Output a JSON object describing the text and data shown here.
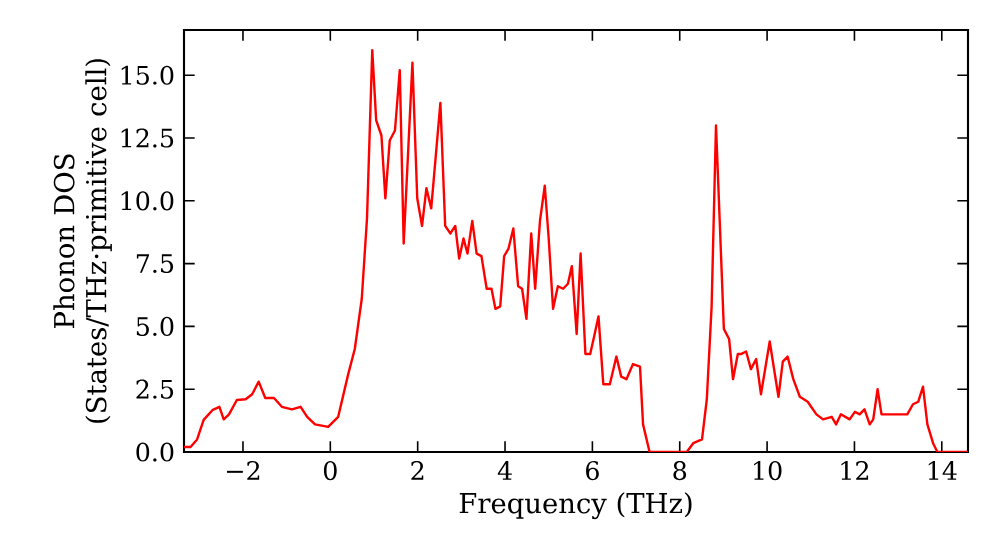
{
  "chart_data": {
    "type": "line",
    "xlabel": "Frequency (THz)",
    "ylabel": "Phonon DOS (States/THz·primitive cell)",
    "x": [
      -3.35,
      -3.2,
      -3.05,
      -2.9,
      -2.69,
      -2.54,
      -2.44,
      -2.32,
      -2.14,
      -1.94,
      -1.79,
      -1.64,
      -1.49,
      -1.29,
      -1.11,
      -0.88,
      -0.68,
      -0.53,
      -0.35,
      -0.05,
      0.18,
      0.41,
      0.56,
      0.72,
      0.84,
      0.96,
      1.05,
      1.17,
      1.26,
      1.36,
      1.48,
      1.59,
      1.68,
      1.88,
      1.99,
      2.1,
      2.2,
      2.31,
      2.52,
      2.63,
      2.75,
      2.86,
      2.95,
      3.05,
      3.14,
      3.25,
      3.35,
      3.46,
      3.58,
      3.69,
      3.78,
      3.89,
      3.98,
      4.08,
      4.19,
      4.3,
      4.39,
      4.49,
      4.6,
      4.69,
      4.8,
      4.91,
      5.0,
      5.1,
      5.21,
      5.33,
      5.44,
      5.53,
      5.64,
      5.73,
      5.84,
      5.95,
      6.04,
      6.14,
      6.25,
      6.4,
      6.55,
      6.66,
      6.78,
      6.93,
      7.09,
      7.16,
      7.31,
      8.16,
      8.31,
      8.51,
      8.62,
      8.73,
      8.83,
      8.92,
      9.01,
      9.13,
      9.22,
      9.33,
      9.4,
      9.52,
      9.63,
      9.75,
      9.86,
      10.06,
      10.26,
      10.36,
      10.47,
      10.6,
      10.75,
      10.93,
      11.13,
      11.28,
      11.48,
      11.58,
      11.69,
      11.89,
      12.01,
      12.12,
      12.23,
      12.35,
      12.43,
      12.53,
      12.62,
      12.88,
      13.21,
      13.34,
      13.46,
      13.57,
      13.67,
      13.8,
      13.9,
      14.6
    ],
    "series": [
      {
        "color": "#ff0000",
        "values": [
          0.2,
          0.2,
          0.5,
          1.28,
          1.68,
          1.8,
          1.3,
          1.5,
          2.07,
          2.1,
          2.3,
          2.8,
          2.15,
          2.15,
          1.8,
          1.7,
          1.8,
          1.4,
          1.1,
          1.0,
          1.4,
          3.1,
          4.1,
          6.1,
          9.3,
          16.0,
          13.2,
          12.6,
          10.1,
          12.4,
          12.8,
          15.2,
          8.3,
          15.5,
          10.1,
          9.0,
          10.5,
          9.7,
          13.9,
          9.0,
          8.7,
          9.0,
          7.7,
          8.5,
          7.9,
          9.2,
          7.9,
          7.8,
          6.5,
          6.5,
          5.7,
          5.8,
          7.8,
          8.1,
          8.9,
          6.6,
          6.5,
          5.3,
          8.7,
          6.5,
          9.2,
          10.6,
          8.5,
          5.7,
          6.6,
          6.5,
          6.7,
          7.4,
          4.7,
          7.9,
          3.9,
          3.9,
          4.6,
          5.4,
          2.7,
          2.7,
          3.8,
          3.0,
          2.9,
          3.5,
          3.4,
          1.1,
          0.0,
          0.0,
          0.35,
          0.5,
          2.1,
          5.8,
          13.0,
          9.0,
          4.9,
          4.5,
          2.9,
          3.9,
          3.9,
          4.0,
          3.3,
          3.7,
          2.3,
          4.4,
          2.2,
          3.6,
          3.8,
          2.9,
          2.2,
          2.0,
          1.5,
          1.3,
          1.4,
          1.1,
          1.5,
          1.3,
          1.6,
          1.5,
          1.7,
          1.1,
          1.3,
          2.5,
          1.5,
          1.5,
          1.5,
          1.9,
          2.0,
          2.6,
          1.1,
          0.35,
          0.0,
          0.0
        ]
      }
    ],
    "xlim": [
      -3.35,
      14.6
    ],
    "ylim": [
      0,
      16.8
    ],
    "xticks": [
      {
        "value": -2,
        "label": "−2"
      },
      0,
      2,
      4,
      6,
      8,
      10,
      12,
      14
    ],
    "yticks": [
      {
        "value": 0,
        "label": "0.0"
      },
      {
        "value": 2.5,
        "label": "2.5"
      },
      {
        "value": 5,
        "label": "5.0"
      },
      {
        "value": 7.5,
        "label": "7.5"
      },
      {
        "value": 10,
        "label": "10.0"
      },
      {
        "value": 12.5,
        "label": "12.5"
      },
      {
        "value": 15,
        "label": "15.0"
      }
    ],
    "grid": false,
    "marker": "none",
    "line_style": "solid"
  }
}
